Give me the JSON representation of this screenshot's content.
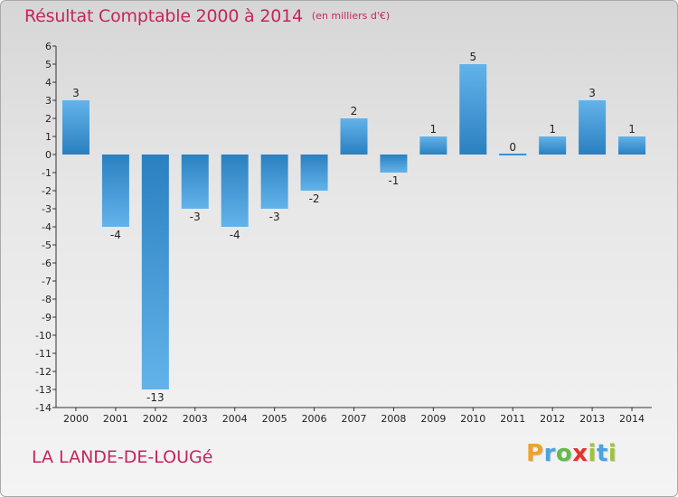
{
  "title": "Résultat Comptable 2000 à 2014",
  "title_unit": "(en milliers d'€)",
  "location": "LA LANDE-DE-LOUGé",
  "logo": {
    "letters": [
      "P",
      "r",
      "o",
      "x",
      "i",
      "t",
      "i"
    ]
  },
  "colors": {
    "title": "#c5245f",
    "bar_light": "#63b3ea",
    "bar_dark": "#2a80c0",
    "logo": [
      "#f0a12c",
      "#4aa3df",
      "#66b94a",
      "#e1342f",
      "#9bc43a",
      "#4aa3df",
      "#9bc43a"
    ]
  },
  "chart_data": {
    "type": "bar",
    "title": "Résultat Comptable 2000 à 2014",
    "xlabel": "",
    "ylabel": "en milliers d'€",
    "ylim": [
      -14,
      6
    ],
    "grid": false,
    "categories": [
      "2000",
      "2001",
      "2002",
      "2003",
      "2004",
      "2005",
      "2006",
      "2007",
      "2008",
      "2009",
      "2010",
      "2011",
      "2012",
      "2013",
      "2014"
    ],
    "values": [
      3,
      -4,
      -13,
      -3,
      -4,
      -3,
      -2,
      2,
      -1,
      1,
      5,
      0,
      1,
      3,
      1
    ],
    "value_labels": [
      "3",
      "-4",
      "-13",
      "-3",
      "-4",
      "-3",
      "-2",
      "2",
      "-1",
      "1",
      "5",
      "0",
      "1",
      "3",
      "1"
    ],
    "y_ticks": [
      "6",
      "5",
      "4",
      "3",
      "2",
      "1",
      "0",
      "-1",
      "-2",
      "-3",
      "-4",
      "-5",
      "-6",
      "-7",
      "-8",
      "-9",
      "-10",
      "-11",
      "-12",
      "-13",
      "-14"
    ]
  }
}
